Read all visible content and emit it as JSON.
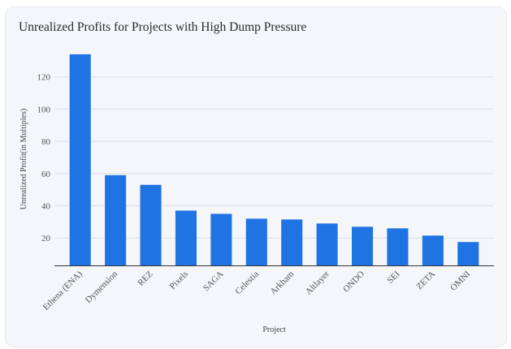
{
  "chart_data": {
    "type": "bar",
    "title": "Unrealized Profits for Projects with High Dump Pressure",
    "xlabel": "Project",
    "ylabel": "Unrealized Profit(in Multiples)",
    "categories": [
      "Ethena (ENA)",
      "Dymension",
      "REZ",
      "Pixels",
      "SAGA",
      "Celestia",
      "Arkham",
      "Altlayer",
      "ONDO",
      "SEI",
      "ZETA",
      "OMNI"
    ],
    "values": [
      134,
      59,
      53,
      37,
      35,
      32,
      31.5,
      29,
      27,
      26,
      21.5,
      17.5
    ],
    "yticks": [
      20,
      40,
      60,
      80,
      100,
      120
    ],
    "ylim": [
      3,
      140
    ],
    "grid": true,
    "legend": "none",
    "bar_color": "#1f73e3"
  }
}
